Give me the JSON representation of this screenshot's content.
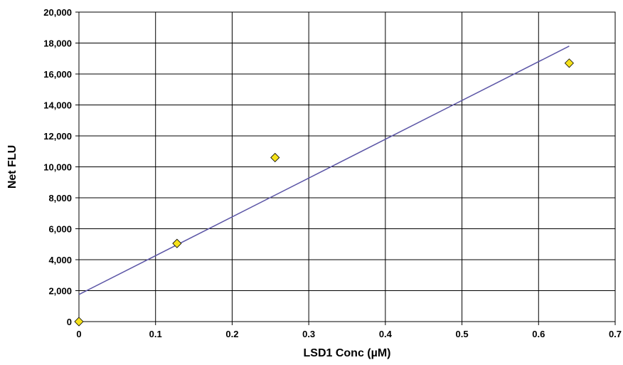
{
  "chart_data": {
    "type": "scatter",
    "title": "",
    "xlabel": "LSD1 Conc (µM)",
    "ylabel": "Net FLU",
    "xlim": [
      0,
      0.7
    ],
    "ylim": [
      0,
      20000
    ],
    "x_ticks": [
      "0",
      "0.1",
      "0.2",
      "0.3",
      "0.4",
      "0.5",
      "0.6",
      "0.7"
    ],
    "y_ticks": [
      "0",
      "2,000",
      "4,000",
      "6,000",
      "8,000",
      "10,000",
      "12,000",
      "14,000",
      "16,000",
      "18,000",
      "20,000"
    ],
    "grid": true,
    "legend": "none",
    "series": [
      {
        "marker": "diamond",
        "marker_color": "#f5e11a",
        "points": [
          {
            "x": 0,
            "y": 0
          },
          {
            "x": 0.128,
            "y": 5050
          },
          {
            "x": 0.256,
            "y": 10600
          },
          {
            "x": 0.64,
            "y": 16700
          }
        ]
      }
    ],
    "trendline": {
      "type": "linear",
      "color": "#5b55a6",
      "x_range": [
        0,
        0.64
      ],
      "y_range": [
        1750,
        17800
      ]
    }
  }
}
